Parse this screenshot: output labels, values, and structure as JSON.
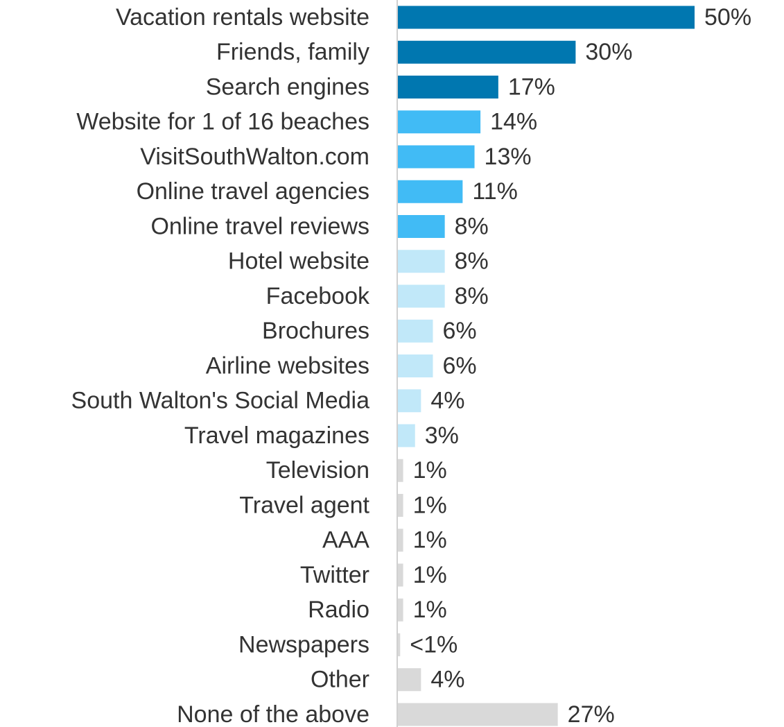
{
  "chart_data": {
    "type": "barh",
    "categories": [
      "Vacation rentals website",
      "Friends, family",
      "Search engines",
      "Website for 1 of 16 beaches",
      "VisitSouthWalton.com",
      "Online travel agencies",
      "Online travel reviews",
      "Hotel website",
      "Facebook",
      "Brochures",
      "Airline websites",
      "South Walton's Social Media",
      "Travel magazines",
      "Television",
      "Travel agent",
      "AAA",
      "Twitter",
      "Radio",
      "Newspapers",
      "Other",
      "None of the above"
    ],
    "values": [
      50,
      30,
      17,
      14,
      13,
      11,
      8,
      8,
      8,
      6,
      6,
      4,
      3,
      1,
      1,
      1,
      1,
      1,
      0.5,
      4,
      27
    ],
    "value_labels": [
      "50%",
      "30%",
      "17%",
      "14%",
      "13%",
      "11%",
      "8%",
      "8%",
      "8%",
      "6%",
      "6%",
      "4%",
      "3%",
      "1%",
      "1%",
      "1%",
      "1%",
      "1%",
      "<1%",
      "4%",
      "27%"
    ],
    "colors": [
      "#0077b0",
      "#0077b0",
      "#0077b0",
      "#41bbf5",
      "#41bbf5",
      "#41bbf5",
      "#41bbf5",
      "#c1e8f9",
      "#c1e8f9",
      "#c1e8f9",
      "#c1e8f9",
      "#c1e8f9",
      "#c1e8f9",
      "#d9d9d9",
      "#d9d9d9",
      "#d9d9d9",
      "#d9d9d9",
      "#d9d9d9",
      "#d9d9d9",
      "#d9d9d9",
      "#d9d9d9"
    ],
    "xlim": [
      0,
      50
    ]
  }
}
